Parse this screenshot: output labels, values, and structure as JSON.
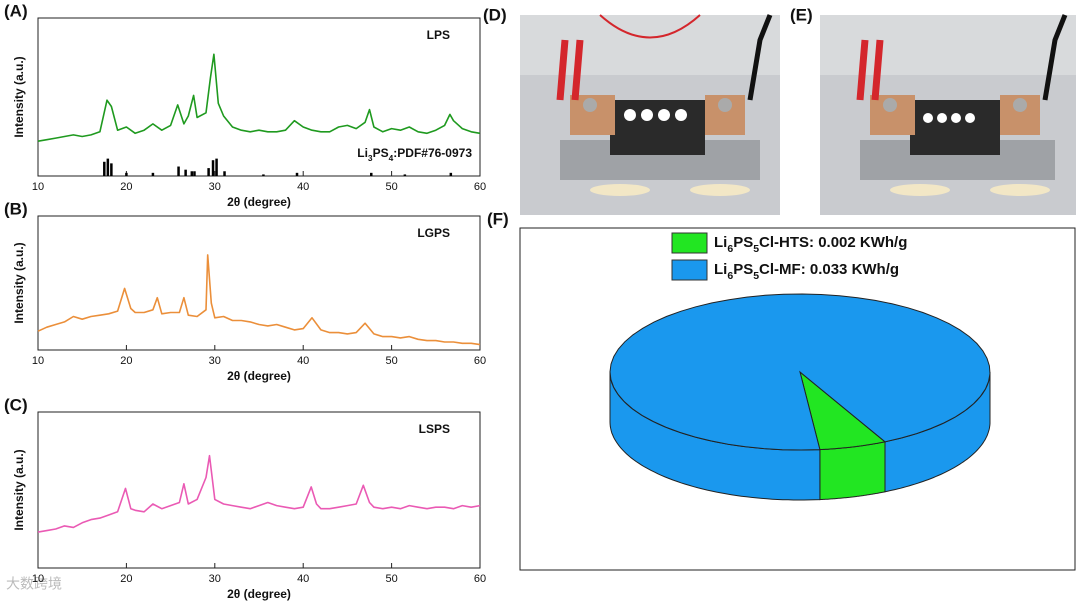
{
  "chart_data": [
    {
      "type": "line",
      "label": "(A)",
      "xlabel": "2θ (degree)",
      "ylabel": "Intensity (a.u.)",
      "xlim": [
        10,
        60
      ],
      "xticks": [
        10,
        20,
        30,
        40,
        50,
        60
      ],
      "ylim": [
        0,
        100
      ],
      "series": [
        {
          "name": "LPS",
          "color": "#1f9a1f",
          "x": [
            10,
            11,
            12,
            13,
            14,
            15,
            16,
            17,
            17.8,
            18.3,
            19,
            20,
            21,
            22,
            23,
            24,
            25,
            25.8,
            26.5,
            27,
            27.6,
            28,
            29,
            29.5,
            29.9,
            30.4,
            31,
            32,
            33,
            34,
            35,
            36,
            37,
            38,
            39,
            40,
            41,
            42,
            43,
            44,
            45,
            46,
            47,
            47.5,
            48,
            49,
            50,
            51,
            52,
            53,
            54,
            55,
            56,
            56.6,
            57,
            58,
            59,
            60
          ],
          "values": [
            22,
            23,
            24,
            25,
            26,
            25,
            26,
            28,
            48,
            44,
            29,
            31,
            27,
            29,
            33,
            29,
            32,
            45,
            33,
            38,
            51,
            37,
            40,
            62,
            77,
            46,
            38,
            31,
            29,
            28,
            29,
            28,
            28,
            29,
            35,
            31,
            29,
            28,
            28,
            31,
            32,
            30,
            34,
            42,
            31,
            28,
            30,
            29,
            31,
            28,
            27,
            29,
            32,
            39,
            35,
            30,
            28,
            27
          ]
        },
        {
          "name": "Li3PS4:PDF#76-0973",
          "color": "#000000",
          "style": "stick",
          "x": [
            17.5,
            17.9,
            18.3,
            20,
            23,
            25.9,
            26.7,
            27.4,
            27.7,
            29.3,
            29.8,
            30.2,
            31.1,
            35.5,
            39.3,
            47.7,
            51.5,
            56.7
          ],
          "values": [
            9,
            11,
            8,
            2,
            2,
            6,
            4,
            3,
            3,
            5,
            10,
            11,
            3,
            1,
            2,
            2,
            1,
            2
          ]
        }
      ]
    },
    {
      "type": "line",
      "label": "(B)",
      "xlabel": "2θ (degree)",
      "ylabel": "Intensity (a.u.)",
      "xlim": [
        10,
        60
      ],
      "xticks": [
        10,
        20,
        30,
        40,
        50,
        60
      ],
      "ylim": [
        0,
        100
      ],
      "series": [
        {
          "name": "LGPS",
          "color": "#eb8f3a",
          "x": [
            10,
            11,
            12,
            13,
            14,
            15,
            16,
            17,
            18,
            19,
            19.8,
            20.5,
            21,
            22,
            23,
            23.5,
            24,
            25,
            26,
            26.5,
            27,
            28,
            29,
            29.2,
            29.6,
            30,
            31,
            32,
            33,
            34,
            35,
            36,
            37,
            38,
            39,
            40,
            41,
            42,
            43,
            44,
            45,
            46,
            47,
            48,
            49,
            50,
            51,
            52,
            53,
            54,
            55,
            56,
            57,
            58,
            59,
            60
          ],
          "values": [
            14,
            17,
            19,
            21,
            25,
            23,
            25,
            26,
            27,
            29,
            46,
            31,
            28,
            28,
            30,
            39,
            27,
            28,
            28,
            39,
            26,
            25,
            30,
            71,
            35,
            24,
            25,
            22,
            22,
            21,
            19,
            18,
            19,
            17,
            15,
            16,
            24,
            15,
            13,
            13,
            12,
            13,
            20,
            12,
            10,
            10,
            9,
            10,
            8,
            7,
            7,
            6,
            6,
            5,
            5,
            4
          ]
        }
      ]
    },
    {
      "type": "line",
      "label": "(C)",
      "xlabel": "2θ (degree)",
      "ylabel": "Intensity (a.u.)",
      "xlim": [
        10,
        60
      ],
      "xticks": [
        10,
        20,
        30,
        40,
        50,
        60
      ],
      "ylim": [
        0,
        100
      ],
      "series": [
        {
          "name": "LSPS",
          "color": "#ea5ab4",
          "x": [
            10,
            11,
            12,
            13,
            14,
            15,
            16,
            17,
            18,
            19,
            19.9,
            20.5,
            21,
            22,
            23,
            24,
            25,
            26,
            26.5,
            27,
            28,
            29,
            29.4,
            30,
            31,
            32,
            33,
            34,
            35,
            36,
            37,
            38,
            39,
            40,
            40.9,
            41.5,
            42,
            43,
            44,
            45,
            46,
            46.8,
            47.5,
            48,
            49,
            50,
            51,
            52,
            53,
            54,
            55,
            56,
            57,
            58,
            59,
            60
          ],
          "values": [
            23,
            24,
            25,
            27,
            26,
            29,
            31,
            32,
            34,
            36,
            51,
            38,
            37,
            36,
            41,
            38,
            40,
            42,
            54,
            41,
            44,
            58,
            72,
            44,
            41,
            40,
            39,
            38,
            40,
            42,
            40,
            39,
            38,
            39,
            52,
            41,
            38,
            38,
            39,
            40,
            41,
            53,
            42,
            39,
            38,
            39,
            38,
            40,
            39,
            38,
            39,
            39,
            38,
            40,
            39,
            40
          ]
        }
      ]
    },
    {
      "type": "pie",
      "label": "(F)",
      "categories": [
        "Li6PS5Cl-HTS: 0.002 KWh/g",
        "Li6PS5Cl-MF: 0.033 KWh/g"
      ],
      "values": [
        0.002,
        0.033
      ],
      "colors": [
        "#22e622",
        "#1a98ee"
      ]
    }
  ],
  "images": [
    {
      "label": "(D)"
    },
    {
      "label": "(E)"
    }
  ],
  "watermark": "大数跨境"
}
